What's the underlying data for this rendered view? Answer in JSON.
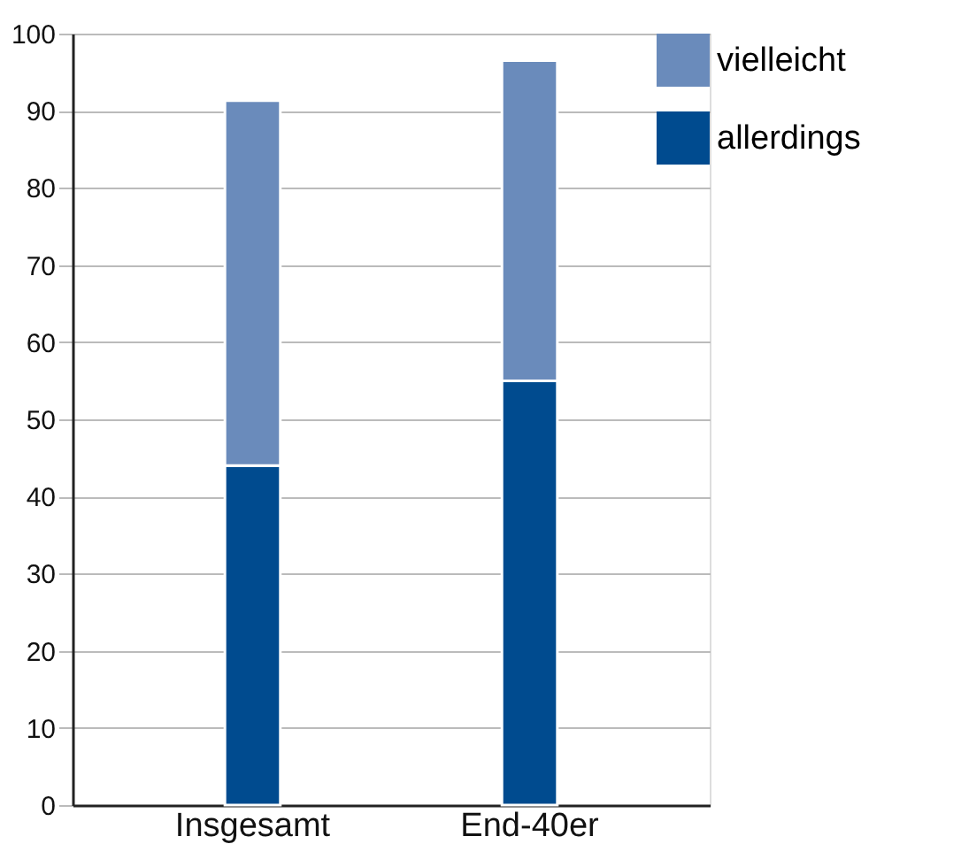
{
  "chart_data": {
    "type": "bar",
    "stacked": true,
    "categories": [
      "Insgesamt",
      "End-40er"
    ],
    "series": [
      {
        "name": "allerdings",
        "color": "#004b8f",
        "values": [
          44,
          55
        ]
      },
      {
        "name": "vielleicht",
        "color": "#6a8bbb",
        "values": [
          47.3,
          41.5
        ]
      }
    ],
    "ylim": [
      0,
      100
    ],
    "yticks": [
      0,
      10,
      20,
      30,
      40,
      50,
      60,
      70,
      80,
      90,
      100
    ],
    "grid": "y",
    "legend": "top right"
  }
}
